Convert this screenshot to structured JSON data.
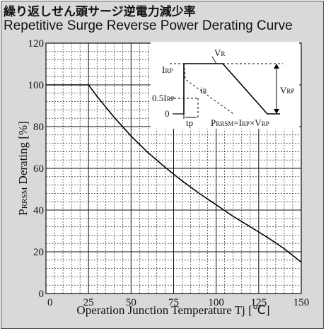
{
  "title_jp": "繰り返しせん頭サージ逆電力減少率",
  "title_en": "Repetitive Surge Reverse Power Derating Curve",
  "chart_data": {
    "type": "line",
    "xlabel": "Operation Junction Temperature  Tj [℃]",
    "ylabel": "PRRSM Derating [%]",
    "ylabel_sub": "RRSM",
    "ylabel_main_prefix": "P",
    "ylabel_main_suffix": " Derating [%]",
    "xlim": [
      0,
      150
    ],
    "ylim": [
      0,
      120
    ],
    "x_ticks": [
      0,
      25,
      50,
      75,
      100,
      125,
      150
    ],
    "y_ticks": [
      0,
      20,
      40,
      60,
      80,
      100,
      120
    ],
    "grid": true,
    "series": [
      {
        "x": [
          0,
          25,
          30,
          40,
          50,
          60,
          70,
          75,
          80,
          90,
          100,
          110,
          120,
          125,
          130,
          140,
          150
        ],
        "y": [
          100,
          100,
          94.5,
          84.5,
          75.5,
          67.5,
          60.5,
          57.2,
          54,
          48,
          42.5,
          37,
          32,
          29.5,
          27,
          21.5,
          15
        ]
      }
    ],
    "inset": {
      "vr_label": "V",
      "vr_sub": "R",
      "irp_label": "I",
      "irp_sub": "RP",
      "half_irp_label": "0.5I",
      "half_irp_sub": "RP",
      "zero_label": "0",
      "ir_label": "i",
      "ir_sub": "R",
      "vrp_label": "V",
      "vrp_sub": "RP",
      "tp_label": "tp",
      "formula_p": "P",
      "formula_p_sub": "RRSM",
      "formula_eq": "=I",
      "formula_i_sub": "RP",
      "formula_x": "×V",
      "formula_v_sub": "RP"
    }
  }
}
